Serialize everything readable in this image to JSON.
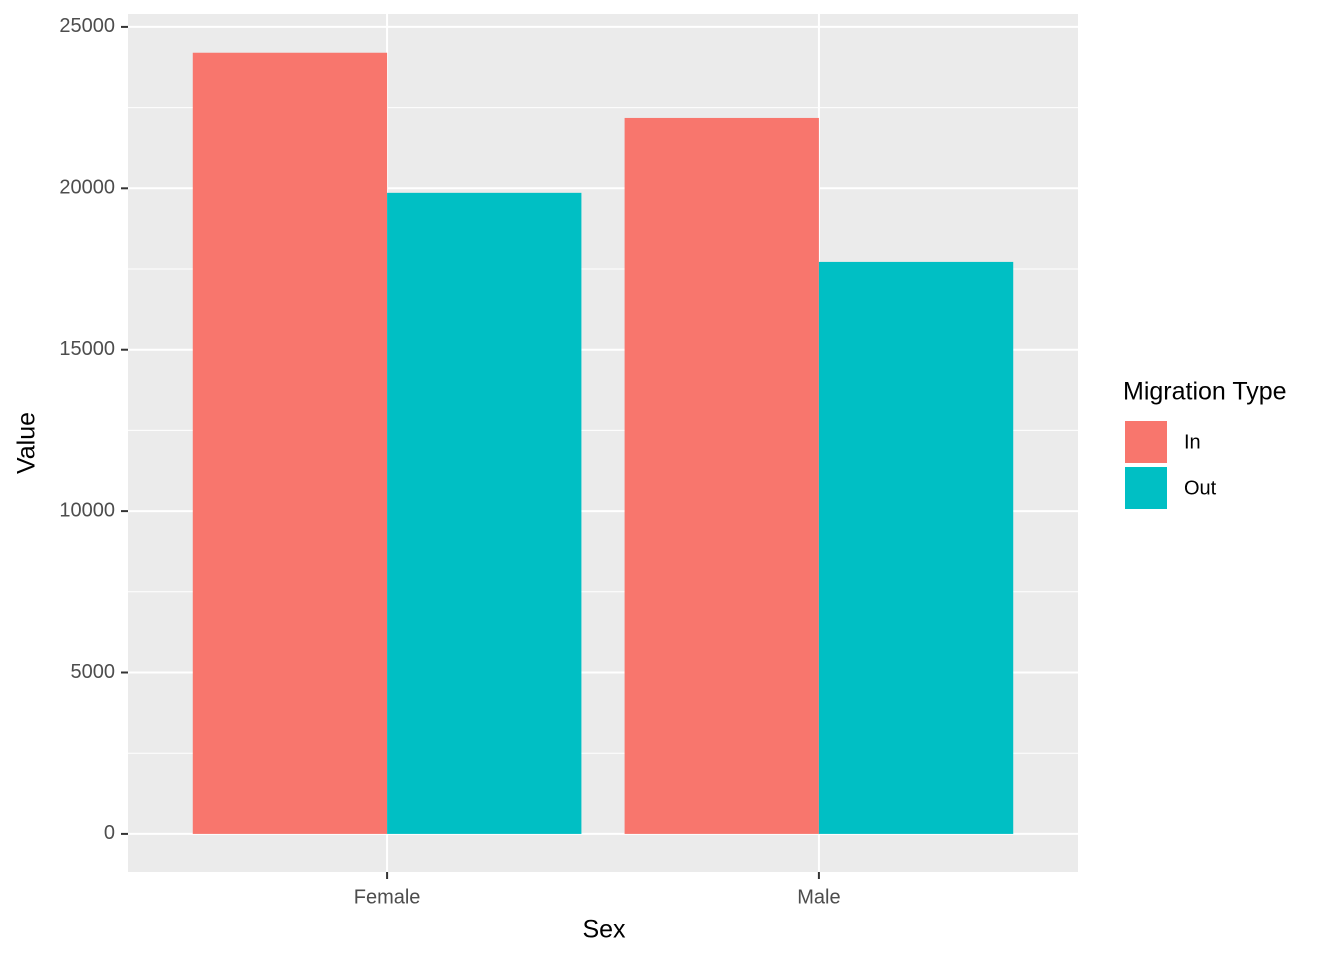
{
  "chart_data": {
    "type": "bar",
    "x_label": "Sex",
    "y_label": "Value",
    "categories": [
      "Female",
      "Male"
    ],
    "series": [
      {
        "name": "In",
        "color": "#f8766d",
        "values": [
          24200,
          22180
        ]
      },
      {
        "name": "Out",
        "color": "#00bfc4",
        "values": [
          19860,
          17720
        ]
      }
    ],
    "ylim": [
      -1180,
      25400
    ],
    "yticks": [
      0,
      5000,
      10000,
      15000,
      20000,
      25000
    ],
    "minor_yticks": [
      2500,
      7500,
      12500,
      17500,
      22500
    ],
    "grid": true,
    "legend_title": "Migration Type",
    "legend_position": "right"
  }
}
